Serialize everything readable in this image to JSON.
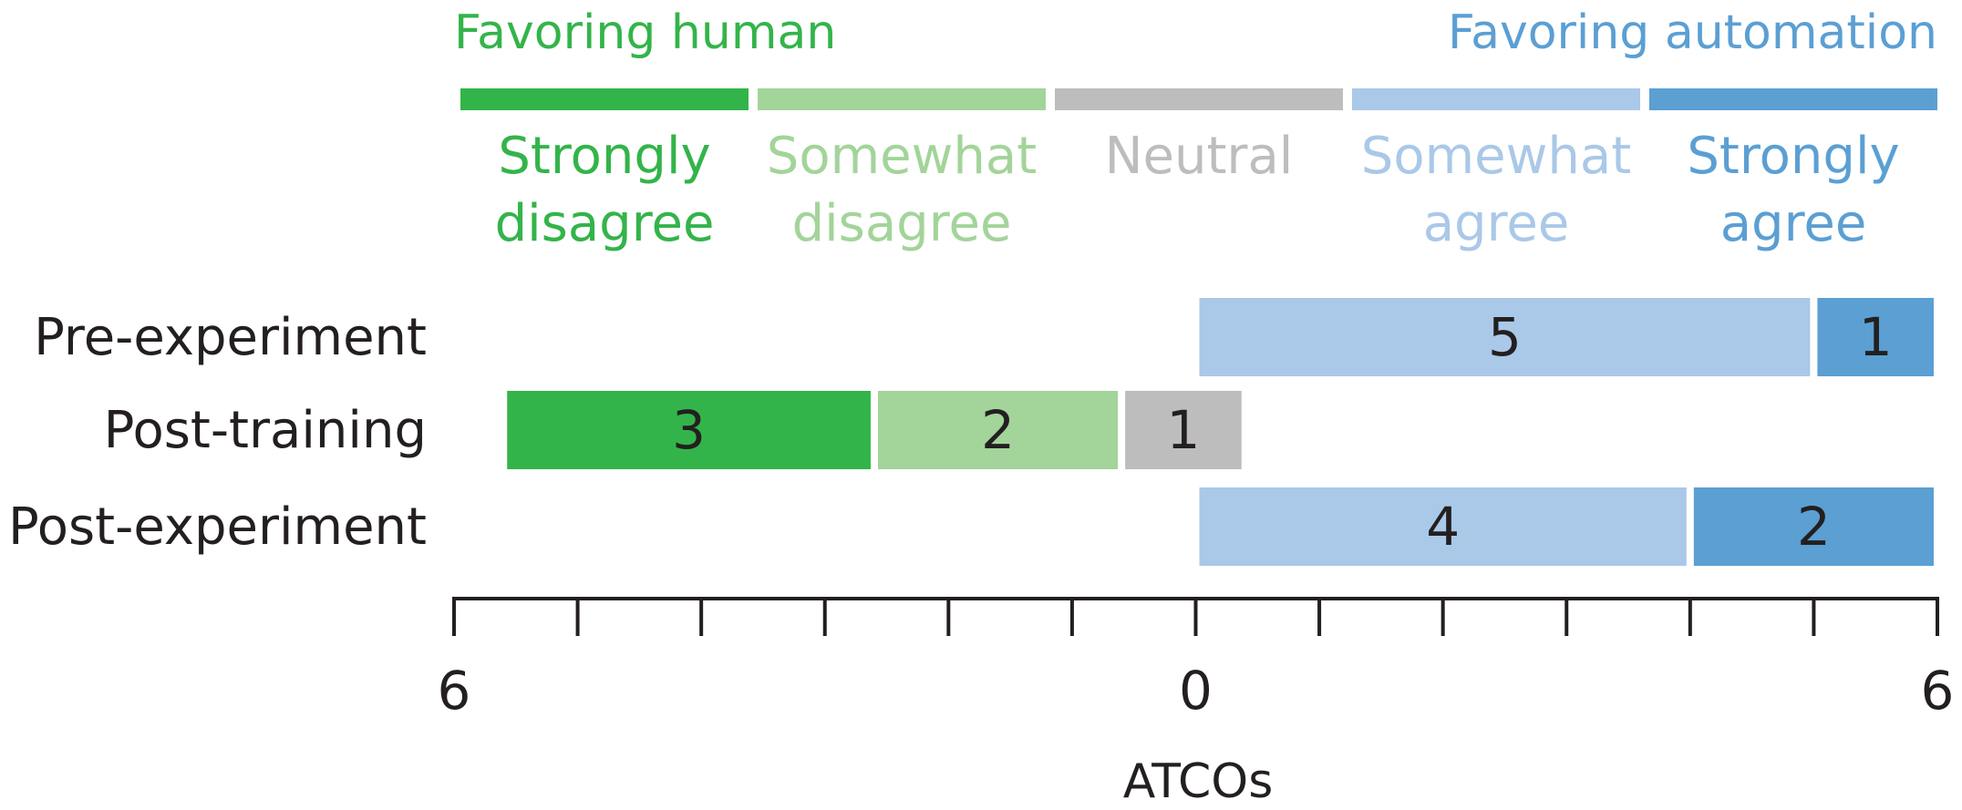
{
  "chart_data": {
    "type": "bar",
    "orientation": "horizontal",
    "stacking": "diverging",
    "headers": {
      "left": "Favoring human",
      "right": "Favoring automation"
    },
    "legend": [
      {
        "line1": "Strongly",
        "line2": "disagree",
        "color": "#33b44a"
      },
      {
        "line1": "Somewhat",
        "line2": "disagree",
        "color": "#a3d49a"
      },
      {
        "line1": "Neutral",
        "line2": "",
        "color": "#bdbdbd"
      },
      {
        "line1": "Somewhat",
        "line2": "agree",
        "color": "#aac8e8"
      },
      {
        "line1": "Strongly",
        "line2": "agree",
        "color": "#5b9fd3"
      }
    ],
    "categories": [
      "Pre-experiment",
      "Post-training",
      "Post-experiment"
    ],
    "series": [
      {
        "name": "Strongly disagree",
        "values": [
          0,
          3,
          0
        ]
      },
      {
        "name": "Somewhat disagree",
        "values": [
          0,
          2,
          0
        ]
      },
      {
        "name": "Neutral",
        "values": [
          0,
          1,
          0
        ]
      },
      {
        "name": "Somewhat agree",
        "values": [
          5,
          0,
          4
        ]
      },
      {
        "name": "Strongly agree",
        "values": [
          1,
          0,
          2
        ]
      }
    ],
    "xlim": [
      -6,
      6
    ],
    "x_ticks": [
      -6,
      -5,
      -4,
      -3,
      -2,
      -1,
      0,
      1,
      2,
      3,
      4,
      5,
      6
    ],
    "x_tick_labels": [
      {
        "value": -6,
        "text": "6"
      },
      {
        "value": 0,
        "text": "0"
      },
      {
        "value": 6,
        "text": "6"
      }
    ],
    "xlabel": "ATCOs",
    "text_color": "#231f20"
  }
}
